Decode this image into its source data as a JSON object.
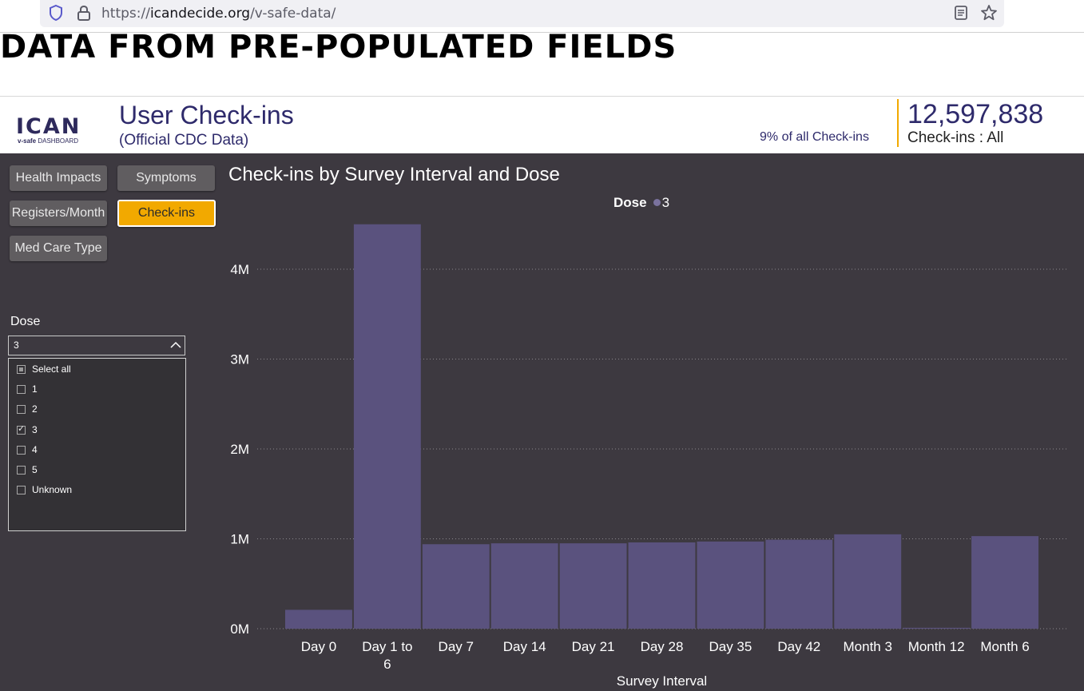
{
  "browser": {
    "url_scheme": "https://",
    "url_host": "icandecide.org",
    "url_path": "/v-safe-data/"
  },
  "page": {
    "heading": "DATA FROM PRE-POPULATED FIELDS"
  },
  "dashboard": {
    "logo": {
      "name": "ICAN",
      "tag_bold": "v-safe",
      "tag_rest": " DASHBOARD"
    },
    "title": "User Check-ins",
    "subtitle": "(Official CDC Data)",
    "percent_text": "9% of all Check-ins",
    "kpi_value": "12,597,838",
    "kpi_label": "Check-ins : All",
    "accent_color": "#f2a900",
    "panel_color": "#3d3940"
  },
  "nav": {
    "health_impacts": "Health Impacts",
    "symptoms": "Symptoms",
    "registers_month": "Registers/Month",
    "check_ins": "Check-ins",
    "med_care_type": "Med Care Type",
    "active": "Check-ins"
  },
  "dose_filter": {
    "label": "Dose",
    "selected_value": "3",
    "options": [
      {
        "label": "Select all",
        "state": "partial"
      },
      {
        "label": "1",
        "state": "unchecked"
      },
      {
        "label": "2",
        "state": "unchecked"
      },
      {
        "label": "3",
        "state": "checked"
      },
      {
        "label": "4",
        "state": "unchecked"
      },
      {
        "label": "5",
        "state": "unchecked"
      },
      {
        "label": "Unknown",
        "state": "unchecked"
      }
    ]
  },
  "chart_data": {
    "type": "bar",
    "title": "Check-ins by Survey Interval and Dose",
    "xlabel": "Survey Interval",
    "ylabel": "",
    "legend_title": "Dose",
    "categories": [
      "Day 0",
      "Day 1 to 6",
      "Day 7",
      "Day 14",
      "Day 21",
      "Day 28",
      "Day 35",
      "Day 42",
      "Month 3",
      "Month 12",
      "Month 6"
    ],
    "series": [
      {
        "name": "3",
        "color": "#5a527e",
        "values": [
          210000,
          4500000,
          940000,
          950000,
          950000,
          960000,
          970000,
          990000,
          1050000,
          10000,
          1030000
        ]
      }
    ],
    "y_ticks": [
      {
        "value": 0,
        "label": "0M"
      },
      {
        "value": 1000000,
        "label": "1M"
      },
      {
        "value": 2000000,
        "label": "2M"
      },
      {
        "value": 3000000,
        "label": "3M"
      },
      {
        "value": 4000000,
        "label": "4M"
      }
    ],
    "ylim": [
      0,
      4500000
    ],
    "grid": true,
    "legend_position": "top-center"
  }
}
